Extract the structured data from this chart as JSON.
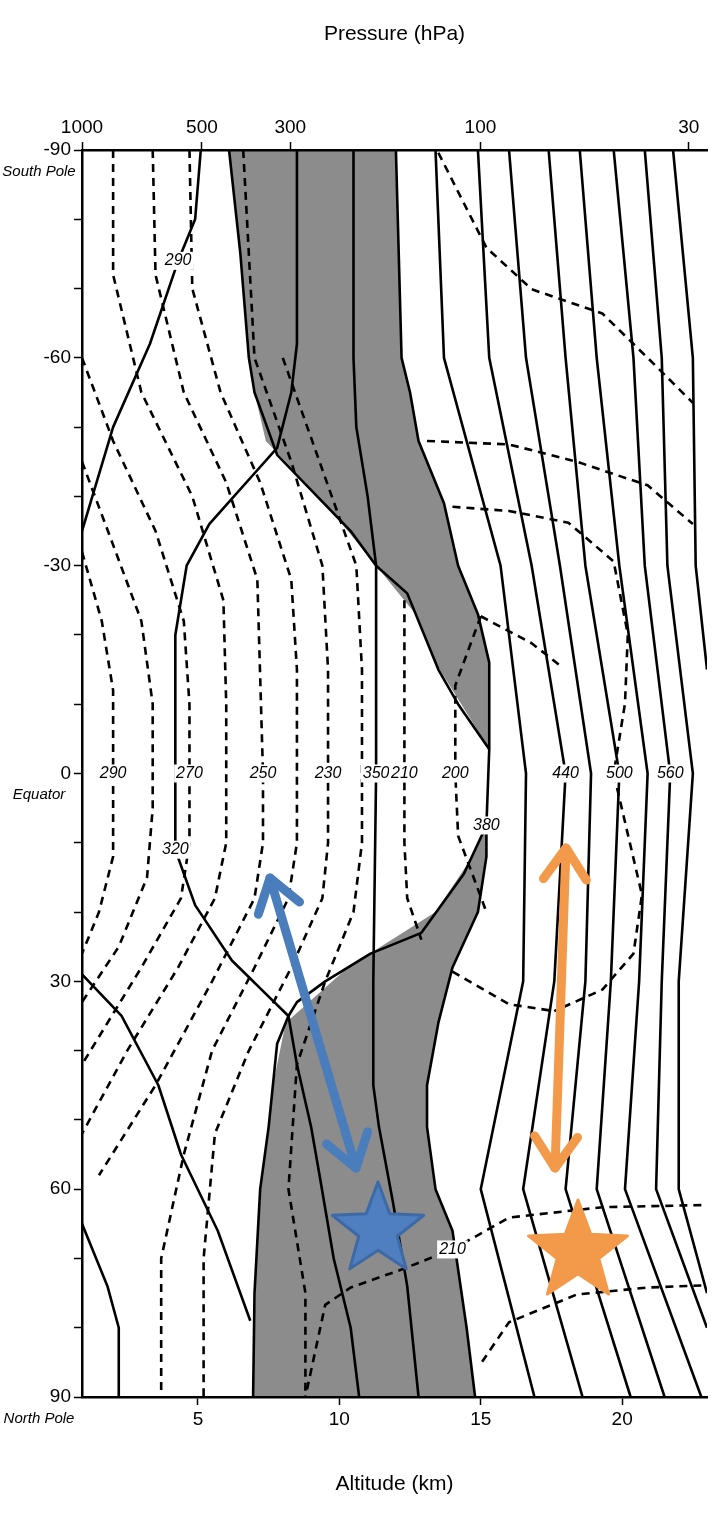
{
  "chart_data": {
    "type": "line",
    "orientation": "horizontal",
    "xlabel": "Altitude (km)",
    "x2label": "Pressure (hPa)",
    "xlim": [
      0.9,
      23
    ],
    "xticks": [
      5,
      10,
      15,
      20
    ],
    "x2lim": [
      1000,
      27
    ],
    "x2ticks": [
      1000,
      500,
      300,
      100,
      30
    ],
    "log": "x2",
    "ylim": [
      90,
      -90
    ],
    "yticks": [
      -90,
      {
        "value": -80,
        "label": null
      },
      {
        "value": -70,
        "label": null
      },
      -60,
      {
        "value": -50,
        "label": null
      },
      {
        "value": -40,
        "label": null
      },
      -30,
      {
        "value": -20,
        "label": null
      },
      {
        "value": -10,
        "label": null
      },
      0,
      {
        "value": 10,
        "label": null
      },
      {
        "value": 20,
        "label": null
      },
      30,
      {
        "value": 40,
        "label": null
      },
      {
        "value": 50,
        "label": null
      },
      60,
      {
        "value": 70,
        "label": null
      },
      {
        "value": 80,
        "label": null
      },
      90
    ],
    "grid": false,
    "legend": false,
    "marker": "none",
    "annotations": [
      "South Pole",
      "Equator",
      "North Pole"
    ],
    "series": [
      {
        "color": "#000000",
        "line_style": "solid",
        "x": [
          -90,
          -75,
          -60,
          -55,
          -46,
          -35,
          -30,
          -26,
          -15,
          -10,
          -3.5
        ],
        "values": [
          6.1,
          6.5,
          6.8,
          7.0,
          7.8,
          10.4,
          11.3,
          12.4,
          13.5,
          14.2,
          15.3
        ]
      },
      {
        "color": "#000000",
        "line_style": "solid",
        "x": [
          7.5,
          14.5,
          23,
          26,
          30,
          33,
          35,
          39,
          51,
          60,
          75,
          90
        ],
        "values": [
          15.2,
          14.4,
          12.9,
          11.1,
          9.5,
          8.5,
          8.2,
          7.8,
          7.5,
          7.2,
          7.0,
          6.95
        ]
      },
      {
        "name": "380",
        "color": "#000000",
        "line_style": "solid",
        "x": [
          -90,
          -75,
          -60,
          -55,
          -48,
          -39,
          -30,
          -23,
          -16,
          -3.5,
          7.5,
          12,
          20,
          28,
          36,
          45,
          51,
          60,
          66,
          80,
          90
        ],
        "values": [
          12.0,
          12.1,
          12.2,
          12.5,
          12.8,
          13.7,
          14.2,
          14.9,
          15.3,
          15.3,
          15.2,
          15.2,
          14.9,
          14.0,
          13.5,
          13.1,
          13.1,
          13.4,
          14.0,
          14.5,
          14.8
        ],
        "lower": [
          6.1,
          6.5,
          6.8,
          7.0,
          7.4,
          9.5,
          11.3,
          12.7,
          13.4,
          15.3,
          15.2,
          14.7,
          13.4,
          10.3,
          8.1,
          7.65,
          7.5,
          7.2,
          7.1,
          7.0,
          6.95
        ],
        "upper": [
          12.0,
          12.1,
          12.2,
          12.5,
          12.8,
          13.7,
          14.2,
          14.9,
          15.3,
          15.3,
          15.2,
          15.2,
          14.9,
          14.0,
          13.5,
          13.1,
          13.1,
          13.4,
          14.0,
          14.5,
          14.8
        ]
      },
      {
        "name": "350",
        "color": "#000000",
        "line_style": "solid",
        "x": [
          -90,
          -60,
          -50,
          -40,
          -30,
          0,
          30,
          45,
          51,
          62,
          74,
          90
        ],
        "values": [
          10.5,
          10.5,
          10.6,
          11.0,
          11.3,
          11.3,
          11.2,
          11.2,
          11.4,
          11.9,
          12.4,
          12.8
        ]
      },
      {
        "name": "320",
        "color": "#000000",
        "line_style": "solid",
        "x": [
          -90,
          -62,
          -55,
          -47,
          -36,
          -30,
          -20,
          0,
          11,
          19,
          27,
          35,
          42,
          51,
          58,
          70,
          80,
          90
        ],
        "values": [
          8.5,
          8.5,
          8.3,
          7.8,
          5.4,
          4.6,
          4.2,
          4.2,
          4.2,
          4.9,
          6.2,
          8.2,
          8.5,
          9.0,
          9.3,
          9.8,
          10.4,
          10.7
        ]
      },
      {
        "name": "290",
        "color": "#000000",
        "line_style": "solid",
        "x": [
          -90,
          -80,
          -74,
          -62,
          -50,
          -35
        ],
        "values": [
          5.1,
          4.9,
          4.3,
          3.3,
          2.0,
          0.9
        ]
      },
      {
        "color": "#000000",
        "line_style": "solid",
        "x": [
          29,
          35,
          45,
          55,
          66,
          79
        ],
        "values": [
          0.9,
          2.3,
          3.6,
          4.4,
          5.7,
          6.85
        ]
      },
      {
        "color": "#000000",
        "line_style": "solid",
        "x": [
          65,
          74,
          80,
          90
        ],
        "values": [
          0.9,
          1.8,
          2.2,
          2.2
        ]
      },
      {
        "color": "#000000",
        "line_style": "solid",
        "x": [
          -90,
          -60,
          -30,
          0,
          30,
          60,
          90
        ],
        "values": [
          13.4,
          13.7,
          15.7,
          16.6,
          16.5,
          15.0,
          16.9
        ]
      },
      {
        "name": "440",
        "color": "#000000",
        "line_style": "solid",
        "x": [
          -90,
          -60,
          -30,
          0,
          30,
          60,
          90
        ],
        "values": [
          14.9,
          15.3,
          16.8,
          18.0,
          17.6,
          16.5,
          18.6
        ]
      },
      {
        "color": "#000000",
        "line_style": "solid",
        "x": [
          -90,
          -60,
          -30,
          0,
          30,
          60,
          90
        ],
        "values": [
          16.0,
          16.6,
          17.8,
          18.9,
          18.7,
          18.0,
          20.3
        ]
      },
      {
        "name": "500",
        "color": "#000000",
        "line_style": "solid",
        "x": [
          -90,
          -60,
          -30,
          0,
          30,
          60,
          90
        ],
        "values": [
          17.4,
          18.0,
          18.7,
          19.9,
          19.6,
          19.1,
          21.5
        ]
      },
      {
        "color": "#000000",
        "line_style": "solid",
        "x": [
          -90,
          -60,
          -30,
          0,
          30,
          60,
          90
        ],
        "values": [
          18.5,
          19.1,
          19.9,
          20.9,
          20.6,
          20.1,
          22.8
        ]
      },
      {
        "name": "560",
        "color": "#000000",
        "line_style": "solid",
        "x": [
          -90,
          -60,
          -30,
          0,
          30,
          60,
          80
        ],
        "values": [
          19.7,
          20.4,
          20.8,
          21.7,
          21.4,
          21.2,
          23.0
        ]
      },
      {
        "color": "#000000",
        "line_style": "solid",
        "x": [
          -90,
          -60,
          -30,
          0,
          30,
          60,
          75
        ],
        "values": [
          20.8,
          21.4,
          21.6,
          22.5,
          22.0,
          22.0,
          23.0
        ]
      },
      {
        "color": "#000000",
        "line_style": "solid",
        "x": [
          -90,
          -60,
          -30,
          -15
        ],
        "values": [
          21.8,
          22.5,
          22.6,
          23.0
        ]
      },
      {
        "name": "290",
        "color": "#000000",
        "line_style": "dashed",
        "x": [
          -32,
          -22,
          -12,
          0,
          12,
          20,
          26
        ],
        "values": [
          0.9,
          1.6,
          2.0,
          2.0,
          2.0,
          1.5,
          0.9
        ]
      },
      {
        "color": "#000000",
        "line_style": "dashed",
        "x": [
          -45,
          -33,
          -22,
          -10,
          5,
          15,
          25,
          33
        ],
        "values": [
          0.9,
          2.0,
          3.0,
          3.4,
          3.4,
          3.2,
          2.2,
          0.9
        ]
      },
      {
        "name": "270",
        "color": "#000000",
        "line_style": "dashed",
        "x": [
          -60,
          -48,
          -35,
          -22,
          -10,
          0,
          10,
          18,
          28,
          38,
          42
        ],
        "values": [
          0.9,
          2.0,
          3.5,
          4.5,
          4.7,
          4.7,
          4.7,
          4.4,
          3.0,
          1.5,
          0.9
        ]
      },
      {
        "color": "#000000",
        "line_style": "dashed",
        "x": [
          -90,
          -72,
          -55,
          -40,
          -25,
          -10,
          10,
          18,
          28,
          40,
          52
        ],
        "values": [
          2.0,
          2.0,
          3.0,
          4.8,
          5.9,
          6.0,
          6.0,
          5.6,
          4.3,
          2.5,
          0.9
        ]
      },
      {
        "name": "250",
        "color": "#000000",
        "line_style": "dashed",
        "x": [
          -90,
          -72,
          -55,
          -42,
          -28,
          0,
          10,
          18,
          30,
          45,
          58
        ],
        "values": [
          3.4,
          3.5,
          4.5,
          6.0,
          7.1,
          7.3,
          7.3,
          7.0,
          5.5,
          3.5,
          1.5
        ]
      },
      {
        "color": "#000000",
        "line_style": "dashed",
        "x": [
          -90,
          -70,
          -55,
          -42,
          -28,
          -15,
          10,
          18,
          28,
          40,
          55,
          70,
          90
        ],
        "values": [
          4.7,
          4.8,
          5.8,
          7.2,
          8.3,
          8.5,
          8.5,
          8.2,
          7.0,
          5.5,
          4.5,
          3.7,
          3.7
        ]
      },
      {
        "name": "230",
        "color": "#000000",
        "line_style": "dashed",
        "x": [
          -90,
          -75,
          -60,
          -45,
          -30,
          -15,
          0,
          10,
          18,
          28,
          40,
          52,
          70,
          90
        ],
        "values": [
          6.6,
          6.8,
          7.0,
          8.3,
          9.4,
          9.6,
          9.6,
          9.6,
          9.4,
          8.3,
          6.8,
          5.6,
          5.2,
          5.2
        ]
      },
      {
        "color": "#000000",
        "line_style": "dashed",
        "x": [
          -60,
          -45,
          -30,
          -15,
          10,
          20,
          30,
          42,
          60,
          75,
          90
        ],
        "values": [
          8.0,
          9.3,
          10.6,
          10.8,
          10.8,
          10.5,
          9.5,
          8.5,
          8.2,
          8.8,
          8.8
        ]
      },
      {
        "name": "210",
        "color": "#000000",
        "line_style": "dashed",
        "x": [
          -25,
          -10,
          0,
          10,
          18,
          24
        ],
        "values": [
          12.3,
          12.3,
          12.3,
          12.3,
          12.4,
          12.9
        ]
      },
      {
        "name": "200",
        "color": "#000000",
        "line_style": "dashed",
        "x": [
          -22.7,
          -12.7,
          0,
          9,
          20
        ],
        "values": [
          15.0,
          14.1,
          14.1,
          14.2,
          15.2
        ]
      },
      {
        "color": "#000000",
        "line_style": "dashed",
        "x": [
          -22.7,
          -18.8,
          -15.6
        ],
        "values": [
          15.0,
          16.8,
          17.8
        ]
      },
      {
        "color": "#000000",
        "line_style": "dashed",
        "x": [
          -89.6,
          -75.9,
          -69.9,
          -66.4,
          -60,
          -53.5
        ],
        "values": [
          13.5,
          15.2,
          16.8,
          19.3,
          20.9,
          22.5
        ]
      },
      {
        "color": "#000000",
        "line_style": "dashed",
        "x": [
          -48,
          -47.5,
          -45,
          -41.6,
          -36
        ],
        "values": [
          13.1,
          16.0,
          18.4,
          20.9,
          22.5
        ]
      },
      {
        "color": "#000000",
        "line_style": "dashed",
        "x": [
          -38.5,
          -37.9,
          -36.2,
          -30.6,
          -20.1,
          -10.1,
          0,
          17.5,
          26,
          31.2,
          34.3
        ],
        "values": [
          14.0,
          16.0,
          18.1,
          19.7,
          20.2,
          20.1,
          19.7,
          20.7,
          20.4,
          19.3,
          17.6
        ]
      },
      {
        "color": "#000000",
        "line_style": "dashed",
        "x": [
          28.6,
          33.3,
          34.3
        ],
        "values": [
          14.0,
          16.0,
          17.6
        ]
      },
      {
        "name": "210",
        "color": "#000000",
        "line_style": "dashed",
        "x": [
          62.3,
          62.6,
          64.1,
          68.7,
          71.6,
          74.2,
          76.7,
          90
        ],
        "values": [
          22.8,
          19.3,
          16.0,
          14.0,
          12.2,
          10.4,
          9.5,
          8.8
        ]
      },
      {
        "color": "#000000",
        "line_style": "dashed",
        "x": [
          73.9,
          74.2,
          75.2,
          79.2,
          85.2
        ],
        "values": [
          22.8,
          20.9,
          18.4,
          16.0,
          15.0
        ]
      }
    ]
  }
}
